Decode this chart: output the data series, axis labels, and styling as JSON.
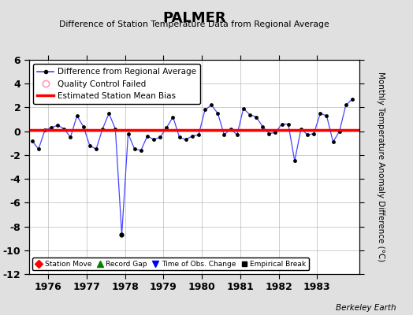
{
  "title": "PALMER",
  "subtitle": "Difference of Station Temperature Data from Regional Average",
  "ylabel": "Monthly Temperature Anomaly Difference (°C)",
  "xlabel_footer": "Berkeley Earth",
  "background_color": "#e0e0e0",
  "plot_bg_color": "#ffffff",
  "grid_color": "#aaaaaa",
  "ylim": [
    -12,
    6
  ],
  "yticks": [
    -12,
    -10,
    -8,
    -6,
    -4,
    -2,
    0,
    2,
    4,
    6
  ],
  "xlim": [
    1975.5,
    1984.1
  ],
  "xticks": [
    1976,
    1977,
    1978,
    1979,
    1980,
    1981,
    1982,
    1983
  ],
  "bias_y": 0.1,
  "bias_color": "#ff0000",
  "line_color": "#4444ff",
  "marker_color": "#000000",
  "data_x": [
    1975.583,
    1975.75,
    1975.917,
    1976.083,
    1976.25,
    1976.417,
    1976.583,
    1976.75,
    1976.917,
    1977.083,
    1977.25,
    1977.417,
    1977.583,
    1977.75,
    1977.917,
    1978.083,
    1978.25,
    1978.417,
    1978.583,
    1978.75,
    1978.917,
    1979.083,
    1979.25,
    1979.417,
    1979.583,
    1979.75,
    1979.917,
    1980.083,
    1980.25,
    1980.417,
    1980.583,
    1980.75,
    1980.917,
    1981.083,
    1981.25,
    1981.417,
    1981.583,
    1981.75,
    1981.917,
    1982.083,
    1982.25,
    1982.417,
    1982.583,
    1982.75,
    1982.917,
    1983.083,
    1983.25,
    1983.417,
    1983.583,
    1983.75,
    1983.917
  ],
  "data_y": [
    -0.8,
    -1.5,
    0.1,
    0.3,
    0.5,
    0.2,
    -0.5,
    1.3,
    0.4,
    -1.2,
    -1.5,
    0.2,
    1.5,
    0.2,
    -8.7,
    -0.2,
    -1.5,
    -1.6,
    -0.4,
    -0.7,
    -0.5,
    0.3,
    1.2,
    -0.5,
    -0.7,
    -0.4,
    -0.3,
    1.8,
    2.2,
    1.5,
    -0.3,
    0.2,
    -0.3,
    1.9,
    1.4,
    1.2,
    0.4,
    -0.2,
    -0.1,
    0.6,
    0.6,
    -2.5,
    0.2,
    -0.3,
    -0.2,
    1.5,
    1.3,
    -0.9,
    0.0,
    2.2,
    2.7
  ],
  "marker_x": [
    1975.583,
    1975.75,
    1975.917,
    1976.083,
    1976.25,
    1976.417,
    1976.583,
    1976.75,
    1976.917,
    1977.083,
    1977.25,
    1977.417,
    1977.583,
    1977.75,
    1978.083,
    1978.25,
    1978.417,
    1978.583,
    1978.75,
    1978.917,
    1979.083,
    1979.25,
    1979.417,
    1979.583,
    1979.75,
    1979.917,
    1980.083,
    1980.25,
    1980.417,
    1980.583,
    1980.75,
    1980.917,
    1981.083,
    1981.25,
    1981.417,
    1981.583,
    1981.75,
    1981.917,
    1982.083,
    1982.25,
    1982.417,
    1982.583,
    1982.75,
    1982.917,
    1983.083,
    1983.25,
    1983.417,
    1983.583,
    1983.75,
    1983.917
  ],
  "marker_y": [
    -0.8,
    -1.5,
    0.1,
    0.3,
    0.5,
    0.2,
    -0.5,
    1.3,
    0.4,
    -1.2,
    -1.5,
    0.2,
    1.5,
    0.2,
    -0.2,
    -1.5,
    -1.6,
    -0.4,
    -0.7,
    -0.5,
    0.3,
    1.2,
    -0.5,
    -0.7,
    -0.4,
    -0.3,
    1.8,
    2.2,
    1.5,
    -0.3,
    0.2,
    -0.3,
    1.9,
    1.4,
    1.2,
    0.4,
    -0.2,
    -0.1,
    0.6,
    0.6,
    -2.5,
    0.2,
    -0.3,
    -0.2,
    1.5,
    1.3,
    -0.9,
    0.0,
    2.2,
    2.7
  ],
  "spike_marker_x": 1977.917,
  "spike_marker_y": -8.7
}
